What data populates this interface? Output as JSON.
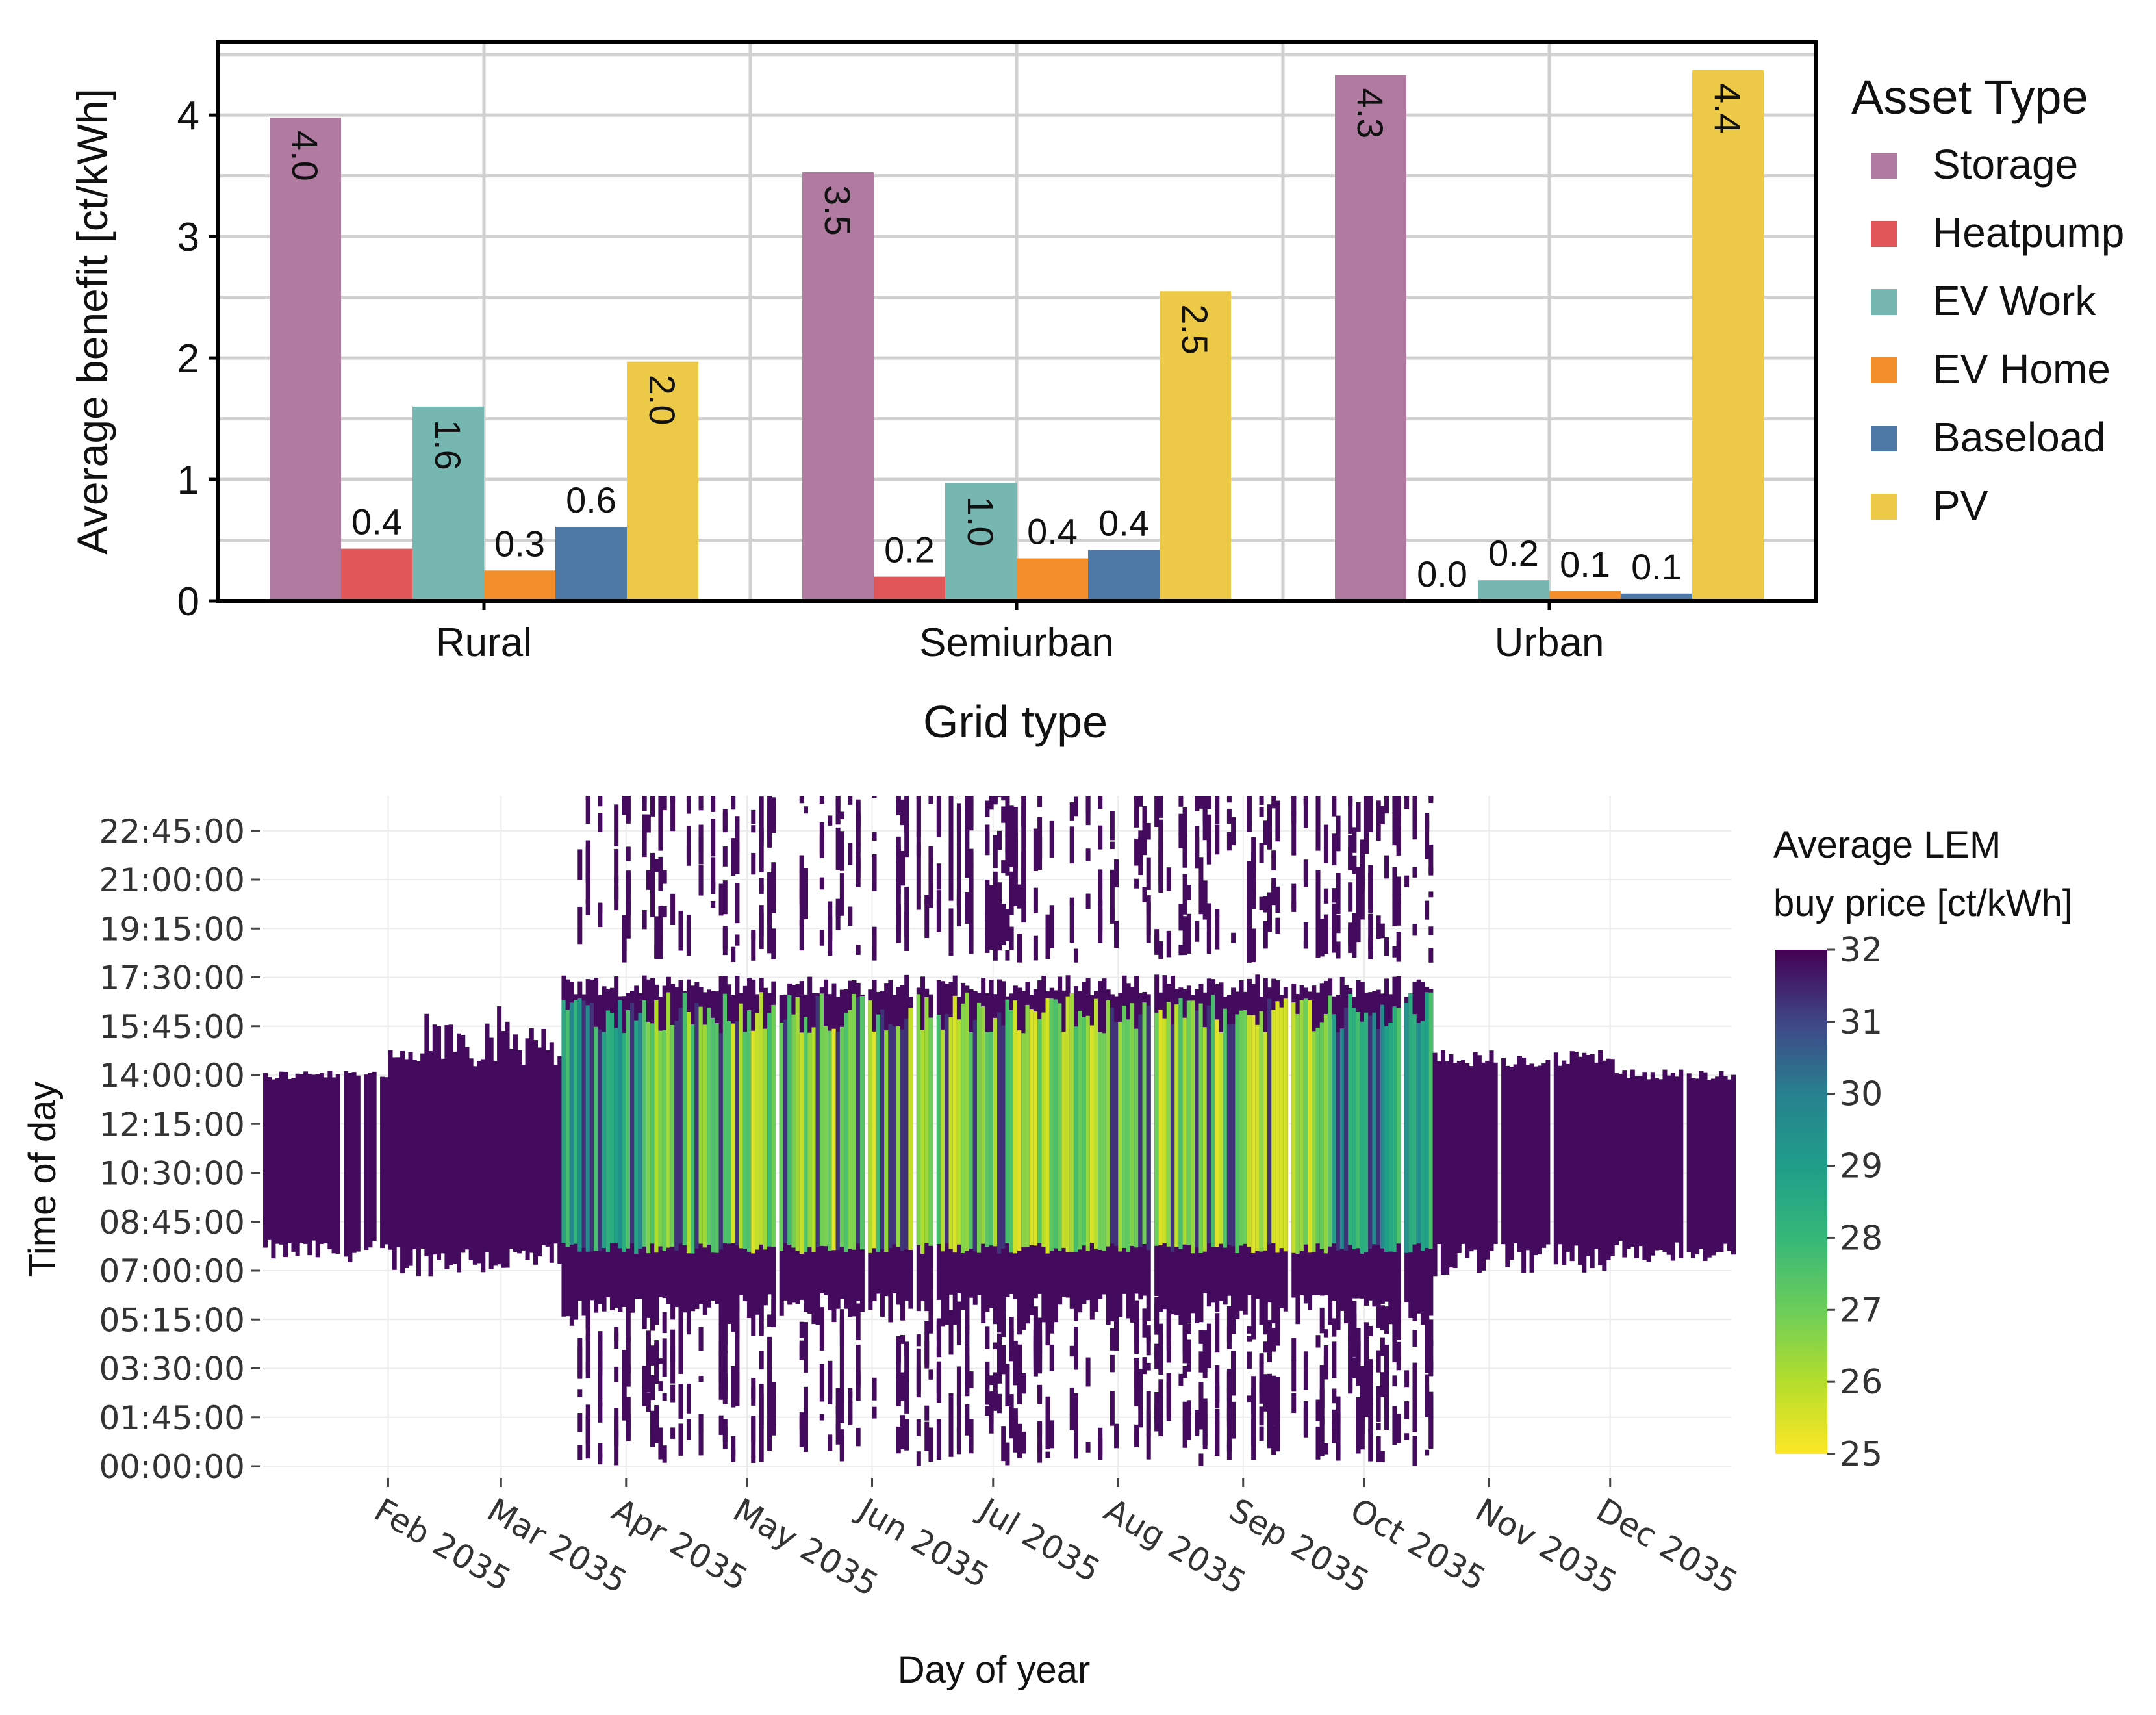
{
  "chart_data": [
    {
      "type": "bar",
      "title": "",
      "xlabel": "Grid type",
      "ylabel": "Average benefit [ct/kWh]",
      "ylim": [
        0,
        4.6
      ],
      "yticks": [
        "0",
        "1",
        "2",
        "3",
        "4"
      ],
      "categories": [
        "Rural",
        "Semiurban",
        "Urban"
      ],
      "legend_title": "Asset Type",
      "legend_position": "right",
      "grid": true,
      "series": [
        {
          "name": "Storage",
          "color": "#b07aa1",
          "values": [
            3.98,
            3.53,
            4.33
          ],
          "labels": [
            "4.0",
            "3.5",
            "4.3"
          ],
          "label_style": "inside-rotated"
        },
        {
          "name": "Heatpump",
          "color": "#e15759",
          "values": [
            0.43,
            0.2,
            0.0
          ],
          "labels": [
            "0.4",
            "0.2",
            "0.0"
          ],
          "label_style": "above"
        },
        {
          "name": "EV Work",
          "color": "#76b7b2",
          "values": [
            1.6,
            0.97,
            0.17
          ],
          "labels": [
            "1.6",
            "1.0",
            "0.2"
          ],
          "label_style": "mixed"
        },
        {
          "name": "EV Home",
          "color": "#f28e2b",
          "values": [
            0.25,
            0.35,
            0.08
          ],
          "labels": [
            "0.3",
            "0.4",
            "0.1"
          ],
          "label_style": "above"
        },
        {
          "name": "Baseload",
          "color": "#4e79a7",
          "values": [
            0.61,
            0.42,
            0.06
          ],
          "labels": [
            "0.6",
            "0.4",
            "0.1"
          ],
          "label_style": "mixed"
        },
        {
          "name": "PV",
          "color": "#edc948",
          "values": [
            1.97,
            2.55,
            4.37
          ],
          "labels": [
            "2.0",
            "2.5",
            "4.4"
          ],
          "label_style": "inside-rotated"
        }
      ]
    },
    {
      "type": "heatmap",
      "xlabel": "Day of year",
      "ylabel": "Time of day",
      "colorbar_title_line1": "Average LEM",
      "colorbar_title_line2": "buy price [ct/kWh]",
      "colorbar_range": [
        25,
        32
      ],
      "colorbar_ticks": [
        "25",
        "26",
        "27",
        "28",
        "29",
        "30",
        "31",
        "32"
      ],
      "colorscale": "viridis (reversed: 25 = yellow, 32 = dark purple)",
      "y_ticks": [
        "00:00:00",
        "01:45:00",
        "03:30:00",
        "05:15:00",
        "07:00:00",
        "08:45:00",
        "10:30:00",
        "12:15:00",
        "14:00:00",
        "15:45:00",
        "17:30:00",
        "19:15:00",
        "21:00:00",
        "22:45:00"
      ],
      "x_ticks": [
        "Feb 2035",
        "Mar 2035",
        "Apr 2035",
        "May 2035",
        "Jun 2035",
        "Jul 2035",
        "Aug 2035",
        "Sep 2035",
        "Oct 2035",
        "Nov 2035",
        "Dec 2035"
      ],
      "x_range_days": [
        1,
        365
      ],
      "y_range_hours": [
        0,
        24
      ],
      "description_regions": {
        "winter_window_hours": [
          7.5,
          14.5
        ],
        "summer_window_hours": [
          8.5,
          17.5
        ],
        "summer_season_days": [
          75,
          285
        ],
        "sparse_nighttime_activity_days": [
          75,
          290
        ]
      }
    }
  ]
}
